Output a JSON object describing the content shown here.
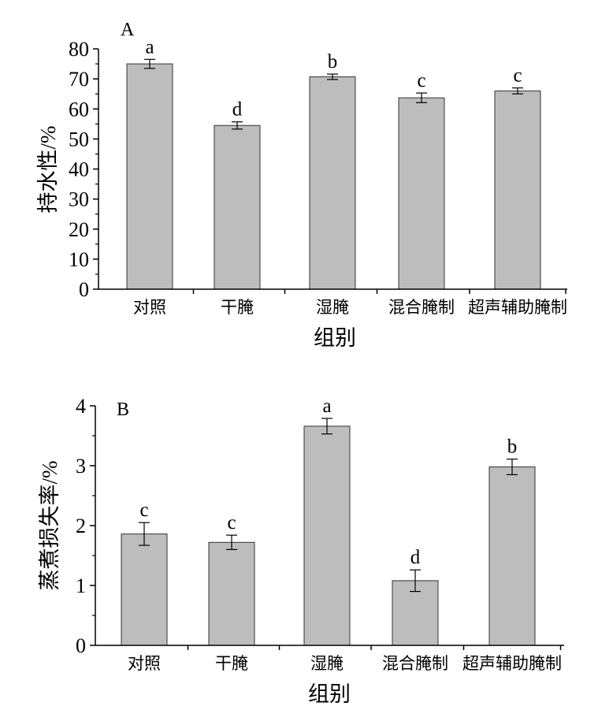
{
  "chart_data": [
    {
      "type": "bar",
      "panel_label": "A",
      "xlabel": "组别",
      "ylabel": "持水性/%",
      "categories": [
        "对照",
        "干腌",
        "湿腌",
        "混合腌制",
        "超声辅助腌制"
      ],
      "values": [
        75.0,
        54.5,
        70.7,
        63.7,
        66.0
      ],
      "errors": [
        1.5,
        1.2,
        0.9,
        1.6,
        1.0
      ],
      "significance": [
        "a",
        "d",
        "b",
        "c",
        "c"
      ],
      "ylim": [
        0,
        80
      ],
      "yticks": [
        "0",
        "10",
        "20",
        "30",
        "40",
        "50",
        "60",
        "70",
        "80"
      ],
      "bar_color": "#bdbdbd",
      "grid": false,
      "legend": "none"
    },
    {
      "type": "bar",
      "panel_label": "B",
      "xlabel": "组别",
      "ylabel": "蒸煮损失率/%",
      "categories": [
        "对照",
        "干腌",
        "湿腌",
        "混合腌制",
        "超声辅助腌制"
      ],
      "values": [
        1.86,
        1.72,
        3.66,
        1.08,
        2.98
      ],
      "errors": [
        0.19,
        0.12,
        0.13,
        0.18,
        0.13
      ],
      "significance": [
        "c",
        "c",
        "a",
        "d",
        "b"
      ],
      "ylim": [
        0,
        4
      ],
      "yticks": [
        "0",
        "1",
        "2",
        "3",
        "4"
      ],
      "bar_color": "#bdbdbd",
      "grid": false,
      "legend": "none"
    }
  ]
}
